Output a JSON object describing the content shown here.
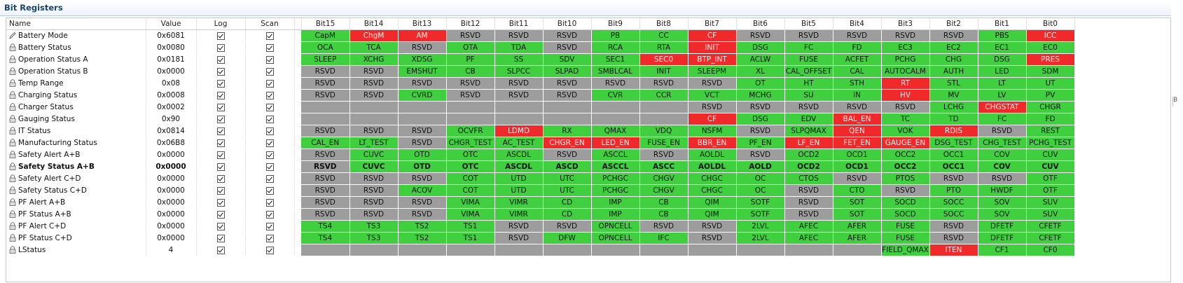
{
  "section": {
    "title": "Bit Registers"
  },
  "columns": {
    "name": "Name",
    "value": "Value",
    "log": "Log",
    "scan": "Scan",
    "bits": [
      "Bit15",
      "Bit14",
      "Bit13",
      "Bit12",
      "Bit11",
      "Bit10",
      "Bit9",
      "Bit8",
      "Bit7",
      "Bit6",
      "Bit5",
      "Bit4",
      "Bit3",
      "Bit2",
      "Bit1",
      "Bit0"
    ]
  },
  "colors": {
    "green": "#3fcf3f",
    "red": "#f02a2a",
    "gray": "#9d9d9d"
  },
  "rows": [
    {
      "name": "Battery Mode",
      "icon": "pencil-icon",
      "value": "0x6081",
      "log": true,
      "scan": true,
      "bold": false,
      "bits": [
        [
          "CapM",
          "g"
        ],
        [
          "ChgM",
          "r"
        ],
        [
          "AM",
          "r"
        ],
        [
          "RSVD",
          "x"
        ],
        [
          "RSVD",
          "x"
        ],
        [
          "RSVD",
          "x"
        ],
        [
          "PB",
          "g"
        ],
        [
          "CC",
          "g"
        ],
        [
          "CF",
          "r"
        ],
        [
          "RSVD",
          "x"
        ],
        [
          "RSVD",
          "x"
        ],
        [
          "RSVD",
          "x"
        ],
        [
          "RSVD",
          "x"
        ],
        [
          "RSVD",
          "x"
        ],
        [
          "PBS",
          "g"
        ],
        [
          "ICC",
          "r"
        ]
      ]
    },
    {
      "name": "Battery Status",
      "icon": "lock-icon",
      "value": "0x0080",
      "log": true,
      "scan": true,
      "bold": false,
      "bits": [
        [
          "OCA",
          "g"
        ],
        [
          "TCA",
          "g"
        ],
        [
          "RSVD",
          "x"
        ],
        [
          "OTA",
          "g"
        ],
        [
          "TDA",
          "g"
        ],
        [
          "RSVD",
          "x"
        ],
        [
          "RCA",
          "g"
        ],
        [
          "RTA",
          "g"
        ],
        [
          "INIT",
          "r"
        ],
        [
          "DSG",
          "g"
        ],
        [
          "FC",
          "g"
        ],
        [
          "FD",
          "g"
        ],
        [
          "EC3",
          "g"
        ],
        [
          "EC2",
          "g"
        ],
        [
          "EC1",
          "g"
        ],
        [
          "EC0",
          "g"
        ]
      ]
    },
    {
      "name": "Operation Status A",
      "icon": "lock-icon",
      "value": "0x0181",
      "log": true,
      "scan": true,
      "bold": false,
      "bits": [
        [
          "SLEEP",
          "g"
        ],
        [
          "XCHG",
          "g"
        ],
        [
          "XDSG",
          "g"
        ],
        [
          "PF",
          "g"
        ],
        [
          "SS",
          "g"
        ],
        [
          "SDV",
          "g"
        ],
        [
          "SEC1",
          "g"
        ],
        [
          "SEC0",
          "r"
        ],
        [
          "BTP_INT",
          "r"
        ],
        [
          "ACLW",
          "g"
        ],
        [
          "FUSE",
          "g"
        ],
        [
          "ACFET",
          "g"
        ],
        [
          "PCHG",
          "g"
        ],
        [
          "CHG",
          "g"
        ],
        [
          "DSG",
          "g"
        ],
        [
          "PRES",
          "r"
        ]
      ]
    },
    {
      "name": "Operation Status B",
      "icon": "lock-icon",
      "value": "0x0000",
      "log": true,
      "scan": true,
      "bold": false,
      "bits": [
        [
          "RSVD",
          "x"
        ],
        [
          "RSVD",
          "x"
        ],
        [
          "EMSHUT",
          "g"
        ],
        [
          "CB",
          "g"
        ],
        [
          "SLPCC",
          "g"
        ],
        [
          "SLPAD",
          "g"
        ],
        [
          "SMBLCAL",
          "g"
        ],
        [
          "INIT",
          "g"
        ],
        [
          "SLEEPM",
          "g"
        ],
        [
          "XL",
          "g"
        ],
        [
          "CAL_OFFSET",
          "g"
        ],
        [
          "CAL",
          "g"
        ],
        [
          "AUTOCALM",
          "g"
        ],
        [
          "AUTH",
          "g"
        ],
        [
          "LED",
          "g"
        ],
        [
          "SDM",
          "g"
        ]
      ]
    },
    {
      "name": "Temp Range",
      "icon": "lock-icon",
      "value": "0x08",
      "log": true,
      "scan": true,
      "bold": false,
      "bits": [
        [
          "RSVD",
          "x"
        ],
        [
          "RSVD",
          "x"
        ],
        [
          "RSVD",
          "x"
        ],
        [
          "RSVD",
          "x"
        ],
        [
          "RSVD",
          "x"
        ],
        [
          "RSVD",
          "x"
        ],
        [
          "RSVD",
          "x"
        ],
        [
          "RSVD",
          "x"
        ],
        [
          "RSVD",
          "x"
        ],
        [
          "OT",
          "g"
        ],
        [
          "HT",
          "g"
        ],
        [
          "STH",
          "g"
        ],
        [
          "RT",
          "r"
        ],
        [
          "STL",
          "g"
        ],
        [
          "LT",
          "g"
        ],
        [
          "UT",
          "g"
        ]
      ]
    },
    {
      "name": "Charging Status",
      "icon": "lock-icon",
      "value": "0x0008",
      "log": true,
      "scan": true,
      "bold": false,
      "bits": [
        [
          "RSVD",
          "x"
        ],
        [
          "RSVD",
          "x"
        ],
        [
          "CVRD",
          "g"
        ],
        [
          "RSVD",
          "x"
        ],
        [
          "RSVD",
          "x"
        ],
        [
          "RSVD",
          "x"
        ],
        [
          "CVR",
          "g"
        ],
        [
          "CCR",
          "g"
        ],
        [
          "VCT",
          "g"
        ],
        [
          "MCHG",
          "g"
        ],
        [
          "SU",
          "g"
        ],
        [
          "IN",
          "g"
        ],
        [
          "HV",
          "r"
        ],
        [
          "MV",
          "g"
        ],
        [
          "LV",
          "g"
        ],
        [
          "PV",
          "g"
        ]
      ]
    },
    {
      "name": "Charger Status",
      "icon": "lock-icon",
      "value": "0x0002",
      "log": true,
      "scan": true,
      "bold": false,
      "bits": [
        [
          "",
          "x"
        ],
        [
          "",
          "x"
        ],
        [
          "",
          "x"
        ],
        [
          "",
          "x"
        ],
        [
          "",
          "x"
        ],
        [
          "",
          "x"
        ],
        [
          "",
          "x"
        ],
        [
          "",
          "x"
        ],
        [
          "RSVD",
          "x"
        ],
        [
          "RSVD",
          "x"
        ],
        [
          "RSVD",
          "x"
        ],
        [
          "RSVD",
          "x"
        ],
        [
          "RSVD",
          "x"
        ],
        [
          "LCHG",
          "g"
        ],
        [
          "CHGSTAT",
          "r"
        ],
        [
          "CHGR",
          "g"
        ]
      ]
    },
    {
      "name": "Gauging Status",
      "icon": "lock-icon",
      "value": "0x90",
      "log": true,
      "scan": true,
      "bold": false,
      "bits": [
        [
          "",
          "x"
        ],
        [
          "",
          "x"
        ],
        [
          "",
          "x"
        ],
        [
          "",
          "x"
        ],
        [
          "",
          "x"
        ],
        [
          "",
          "x"
        ],
        [
          "",
          "x"
        ],
        [
          "",
          "x"
        ],
        [
          "CF",
          "r"
        ],
        [
          "DSG",
          "g"
        ],
        [
          "EDV",
          "g"
        ],
        [
          "BAL_EN",
          "r"
        ],
        [
          "TC",
          "g"
        ],
        [
          "TD",
          "g"
        ],
        [
          "FC",
          "g"
        ],
        [
          "FD",
          "g"
        ]
      ]
    },
    {
      "name": "IT Status",
      "icon": "lock-icon",
      "value": "0x0814",
      "log": true,
      "scan": true,
      "bold": false,
      "bits": [
        [
          "RSVD",
          "x"
        ],
        [
          "RSVD",
          "x"
        ],
        [
          "RSVD",
          "x"
        ],
        [
          "OCVFR",
          "g"
        ],
        [
          "LDMD",
          "r"
        ],
        [
          "RX",
          "g"
        ],
        [
          "QMAX",
          "g"
        ],
        [
          "VDQ",
          "g"
        ],
        [
          "NSFM",
          "g"
        ],
        [
          "RSVD",
          "x"
        ],
        [
          "SLPQMAX",
          "g"
        ],
        [
          "QEN",
          "r"
        ],
        [
          "VOK",
          "g"
        ],
        [
          "RDIS",
          "r"
        ],
        [
          "RSVD",
          "x"
        ],
        [
          "REST",
          "g"
        ]
      ]
    },
    {
      "name": "Manufacturing Status",
      "icon": "lock-icon",
      "value": "0x06B8",
      "log": true,
      "scan": true,
      "bold": false,
      "bits": [
        [
          "CAL_EN",
          "g"
        ],
        [
          "LT_TEST",
          "g"
        ],
        [
          "RSVD",
          "x"
        ],
        [
          "CHGR_TEST",
          "g"
        ],
        [
          "AC_TEST",
          "g"
        ],
        [
          "CHGR_EN",
          "r"
        ],
        [
          "LED_EN",
          "r"
        ],
        [
          "FUSE_EN",
          "g"
        ],
        [
          "BBR_EN",
          "r"
        ],
        [
          "PF_EN",
          "g"
        ],
        [
          "LF_EN",
          "r"
        ],
        [
          "FET_EN",
          "r"
        ],
        [
          "GAUGE_EN",
          "r"
        ],
        [
          "DSG_TEST",
          "g"
        ],
        [
          "CHG_TEST",
          "g"
        ],
        [
          "PCHG_TEST",
          "g"
        ]
      ]
    },
    {
      "name": "Safety Alert A+B",
      "icon": "lock-icon",
      "value": "0x0000",
      "log": true,
      "scan": true,
      "bold": false,
      "bits": [
        [
          "RSVD",
          "x"
        ],
        [
          "CUVC",
          "g"
        ],
        [
          "OTD",
          "g"
        ],
        [
          "OTC",
          "g"
        ],
        [
          "ASCDL",
          "g"
        ],
        [
          "RSVD",
          "x"
        ],
        [
          "ASCCL",
          "g"
        ],
        [
          "RSVD",
          "x"
        ],
        [
          "AOLDL",
          "g"
        ],
        [
          "RSVD",
          "x"
        ],
        [
          "OCD2",
          "g"
        ],
        [
          "OCD1",
          "g"
        ],
        [
          "OCC2",
          "g"
        ],
        [
          "OCC1",
          "g"
        ],
        [
          "COV",
          "g"
        ],
        [
          "CUV",
          "g"
        ]
      ]
    },
    {
      "name": "Safety Status A+B",
      "icon": "lock-icon",
      "value": "0x0000",
      "log": true,
      "scan": true,
      "bold": true,
      "bits": [
        [
          "RSVD",
          "x"
        ],
        [
          "CUVC",
          "g"
        ],
        [
          "OTD",
          "g"
        ],
        [
          "OTC",
          "g"
        ],
        [
          "ASCDL",
          "g"
        ],
        [
          "ASCD",
          "g"
        ],
        [
          "ASCCL",
          "g"
        ],
        [
          "ASCC",
          "g"
        ],
        [
          "AOLDL",
          "g"
        ],
        [
          "AOLD",
          "g"
        ],
        [
          "OCD2",
          "g"
        ],
        [
          "OCD1",
          "g"
        ],
        [
          "OCC2",
          "g"
        ],
        [
          "OCC1",
          "g"
        ],
        [
          "COV",
          "g"
        ],
        [
          "CUV",
          "g"
        ]
      ]
    },
    {
      "name": "Safety Alert C+D",
      "icon": "lock-icon",
      "value": "0x0000",
      "log": true,
      "scan": true,
      "bold": false,
      "bits": [
        [
          "RSVD",
          "x"
        ],
        [
          "RSVD",
          "x"
        ],
        [
          "RSVD",
          "x"
        ],
        [
          "COT",
          "g"
        ],
        [
          "UTD",
          "g"
        ],
        [
          "UTC",
          "g"
        ],
        [
          "PCHGC",
          "g"
        ],
        [
          "CHGV",
          "g"
        ],
        [
          "CHGC",
          "g"
        ],
        [
          "OC",
          "g"
        ],
        [
          "CTOS",
          "g"
        ],
        [
          "RSVD",
          "x"
        ],
        [
          "PTOS",
          "g"
        ],
        [
          "RSVD",
          "x"
        ],
        [
          "RSVD",
          "x"
        ],
        [
          "OTF",
          "g"
        ]
      ]
    },
    {
      "name": "Safety Status C+D",
      "icon": "lock-icon",
      "value": "0x0000",
      "log": true,
      "scan": true,
      "bold": false,
      "bits": [
        [
          "RSVD",
          "x"
        ],
        [
          "RSVD",
          "x"
        ],
        [
          "ACOV",
          "g"
        ],
        [
          "COT",
          "g"
        ],
        [
          "UTD",
          "g"
        ],
        [
          "UTC",
          "g"
        ],
        [
          "PCHGC",
          "g"
        ],
        [
          "CHGV",
          "g"
        ],
        [
          "CHGC",
          "g"
        ],
        [
          "OC",
          "g"
        ],
        [
          "RSVD",
          "x"
        ],
        [
          "CTO",
          "g"
        ],
        [
          "RSVD",
          "x"
        ],
        [
          "PTO",
          "g"
        ],
        [
          "HWDF",
          "g"
        ],
        [
          "OTF",
          "g"
        ]
      ]
    },
    {
      "name": "PF Alert A+B",
      "icon": "lock-icon",
      "value": "0x0000",
      "log": true,
      "scan": true,
      "bold": false,
      "bits": [
        [
          "RSVD",
          "x"
        ],
        [
          "RSVD",
          "x"
        ],
        [
          "RSVD",
          "x"
        ],
        [
          "VIMA",
          "g"
        ],
        [
          "VIMR",
          "g"
        ],
        [
          "CD",
          "g"
        ],
        [
          "IMP",
          "g"
        ],
        [
          "CB",
          "g"
        ],
        [
          "QIM",
          "g"
        ],
        [
          "SOTF",
          "g"
        ],
        [
          "RSVD",
          "x"
        ],
        [
          "SOT",
          "g"
        ],
        [
          "SOCD",
          "g"
        ],
        [
          "SOCC",
          "g"
        ],
        [
          "SOV",
          "g"
        ],
        [
          "SUV",
          "g"
        ]
      ]
    },
    {
      "name": "PF Status A+B",
      "icon": "lock-icon",
      "value": "0x0000",
      "log": true,
      "scan": true,
      "bold": false,
      "bits": [
        [
          "RSVD",
          "x"
        ],
        [
          "RSVD",
          "x"
        ],
        [
          "RSVD",
          "x"
        ],
        [
          "VIMA",
          "g"
        ],
        [
          "VIMR",
          "g"
        ],
        [
          "CD",
          "g"
        ],
        [
          "IMP",
          "g"
        ],
        [
          "CB",
          "g"
        ],
        [
          "QIM",
          "g"
        ],
        [
          "SOTF",
          "g"
        ],
        [
          "RSVD",
          "x"
        ],
        [
          "SOT",
          "g"
        ],
        [
          "SOCD",
          "g"
        ],
        [
          "SOCC",
          "g"
        ],
        [
          "SOV",
          "g"
        ],
        [
          "SUV",
          "g"
        ]
      ]
    },
    {
      "name": "PF Alert C+D",
      "icon": "lock-icon",
      "value": "0x0000",
      "log": true,
      "scan": true,
      "bold": false,
      "bits": [
        [
          "TS4",
          "g"
        ],
        [
          "TS3",
          "g"
        ],
        [
          "TS2",
          "g"
        ],
        [
          "TS1",
          "g"
        ],
        [
          "RSVD",
          "x"
        ],
        [
          "RSVD",
          "x"
        ],
        [
          "OPNCELL",
          "g"
        ],
        [
          "RSVD",
          "x"
        ],
        [
          "RSVD",
          "x"
        ],
        [
          "2LVL",
          "g"
        ],
        [
          "AFEC",
          "g"
        ],
        [
          "AFER",
          "g"
        ],
        [
          "FUSE",
          "g"
        ],
        [
          "RSVD",
          "x"
        ],
        [
          "DFETF",
          "g"
        ],
        [
          "CFETF",
          "g"
        ]
      ]
    },
    {
      "name": "PF Status C+D",
      "icon": "lock-icon",
      "value": "0x0000",
      "log": true,
      "scan": true,
      "bold": false,
      "bits": [
        [
          "TS4",
          "g"
        ],
        [
          "TS3",
          "g"
        ],
        [
          "TS2",
          "g"
        ],
        [
          "TS1",
          "g"
        ],
        [
          "RSVD",
          "x"
        ],
        [
          "DFW",
          "g"
        ],
        [
          "OPNCELL",
          "g"
        ],
        [
          "IFC",
          "g"
        ],
        [
          "RSVD",
          "x"
        ],
        [
          "2LVL",
          "g"
        ],
        [
          "AFEC",
          "g"
        ],
        [
          "AFER",
          "g"
        ],
        [
          "FUSE",
          "g"
        ],
        [
          "RSVD",
          "x"
        ],
        [
          "DFETF",
          "g"
        ],
        [
          "CFETF",
          "g"
        ]
      ]
    },
    {
      "name": "LStatus",
      "icon": "lock-icon",
      "value": "4",
      "log": true,
      "scan": true,
      "bold": false,
      "bits": [
        [
          "",
          "x"
        ],
        [
          "",
          "x"
        ],
        [
          "",
          "x"
        ],
        [
          "",
          "x"
        ],
        [
          "",
          "x"
        ],
        [
          "",
          "x"
        ],
        [
          "",
          "x"
        ],
        [
          "",
          "x"
        ],
        [
          "",
          "x"
        ],
        [
          "",
          "x"
        ],
        [
          "",
          "x"
        ],
        [
          "",
          "x"
        ],
        [
          "FIELD_QMAX",
          "g"
        ],
        [
          "ITEN",
          "r"
        ],
        [
          "CF1",
          "g"
        ],
        [
          "CF0",
          "g"
        ]
      ]
    }
  ]
}
